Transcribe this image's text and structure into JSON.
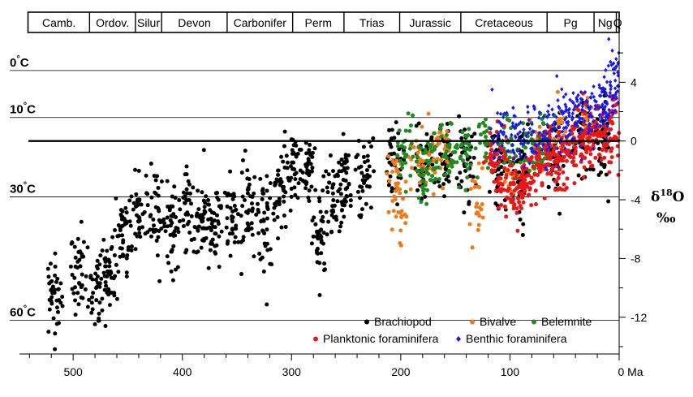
{
  "chart_data": {
    "type": "scatter",
    "title": "",
    "xlabel": "",
    "x_unit": "Ma",
    "ylabel": "δ18O ‰",
    "xlim": [
      541,
      0
    ],
    "ylim": [
      7.5,
      -14.5
    ],
    "x_ticks": [
      500,
      400,
      300,
      200,
      100,
      0
    ],
    "x_tick_labels": [
      "500",
      "400",
      "300",
      "200",
      "100",
      "0 Ma"
    ],
    "y_ticks": [
      4,
      0,
      -4,
      -8,
      -12
    ],
    "y_tick_labels": [
      "4",
      "0",
      "-4",
      "-8",
      "-12"
    ],
    "periods": [
      {
        "name": "Camb.",
        "start": 541,
        "end": 485
      },
      {
        "name": "Ordov.",
        "start": 485,
        "end": 443
      },
      {
        "name": "Silur",
        "start": 443,
        "end": 419
      },
      {
        "name": "Devon",
        "start": 419,
        "end": 359
      },
      {
        "name": "Carbonifer",
        "start": 359,
        "end": 299
      },
      {
        "name": "Perm",
        "start": 299,
        "end": 252
      },
      {
        "name": "Trias",
        "start": 252,
        "end": 201
      },
      {
        "name": "Jurassic",
        "start": 201,
        "end": 145
      },
      {
        "name": "Cretaceous",
        "start": 145,
        "end": 66
      },
      {
        "name": "Pg",
        "start": 66,
        "end": 23
      },
      {
        "name": "Ng",
        "start": 23,
        "end": 2.6
      },
      {
        "name": "Q",
        "start": 2.6,
        "end": 0
      }
    ],
    "temperature_lines": [
      {
        "label": "0",
        "unit": "°C",
        "y": 4.8
      },
      {
        "label": "10",
        "unit": "°C",
        "y": 1.6
      },
      {
        "label": "30",
        "unit": "°C",
        "y": -3.8
      },
      {
        "label": "60",
        "unit": "°C",
        "y": -12.2
      }
    ],
    "zero_line_y": 0,
    "series": [
      {
        "name": "Brachiopod",
        "color": "#000000",
        "marker": "circle",
        "clusters": [
          {
            "x": 518,
            "y": -10.5
          },
          {
            "x": 495,
            "y": -9.0
          },
          {
            "x": 478,
            "y": -10.5
          },
          {
            "x": 466,
            "y": -8.8
          },
          {
            "x": 455,
            "y": -6.0
          },
          {
            "x": 440,
            "y": -5.2
          },
          {
            "x": 425,
            "y": -4.8
          },
          {
            "x": 410,
            "y": -5.8
          },
          {
            "x": 395,
            "y": -5.0
          },
          {
            "x": 382,
            "y": -5.2
          },
          {
            "x": 370,
            "y": -6.5
          },
          {
            "x": 355,
            "y": -5.5
          },
          {
            "x": 340,
            "y": -4.0
          },
          {
            "x": 325,
            "y": -5.5
          },
          {
            "x": 310,
            "y": -3.5
          },
          {
            "x": 298,
            "y": -2.2
          },
          {
            "x": 285,
            "y": -2.0
          },
          {
            "x": 275,
            "y": -6.5
          },
          {
            "x": 262,
            "y": -3.5
          },
          {
            "x": 250,
            "y": -2.8
          },
          {
            "x": 232,
            "y": -2.5
          },
          {
            "x": 205,
            "y": -1.2
          },
          {
            "x": 180,
            "y": -1.8
          },
          {
            "x": 160,
            "y": -1.5
          },
          {
            "x": 140,
            "y": -1.2
          },
          {
            "x": 110,
            "y": -2.0
          },
          {
            "x": 90,
            "y": -2.0
          },
          {
            "x": 60,
            "y": -1.0
          },
          {
            "x": 35,
            "y": 0.5
          },
          {
            "x": 15,
            "y": 0.0
          }
        ]
      },
      {
        "name": "Bivalve",
        "color": "#f07a1a",
        "marker": "circle",
        "clusters": [
          {
            "x": 205,
            "y": -2.5
          },
          {
            "x": 200,
            "y": -4.5
          },
          {
            "x": 185,
            "y": -1.5
          },
          {
            "x": 170,
            "y": -1.0
          },
          {
            "x": 160,
            "y": -0.5
          },
          {
            "x": 130,
            "y": -4.5
          },
          {
            "x": 100,
            "y": -3.0
          },
          {
            "x": 75,
            "y": -0.5
          },
          {
            "x": 55,
            "y": 0.5
          },
          {
            "x": 30,
            "y": 1.5
          }
        ]
      },
      {
        "name": "Belemnite",
        "color": "#1f8a1f",
        "marker": "circle",
        "clusters": [
          {
            "x": 195,
            "y": -1.0
          },
          {
            "x": 180,
            "y": -2.0
          },
          {
            "x": 170,
            "y": -1.0
          },
          {
            "x": 155,
            "y": -0.5
          },
          {
            "x": 140,
            "y": -0.8
          },
          {
            "x": 120,
            "y": -0.2
          },
          {
            "x": 100,
            "y": -0.5
          },
          {
            "x": 80,
            "y": -1.0
          },
          {
            "x": 70,
            "y": 0.0
          }
        ]
      },
      {
        "name": "Planktonic foraminifera",
        "color": "#e81818",
        "marker": "circle",
        "clusters": [
          {
            "x": 115,
            "y": -1.0
          },
          {
            "x": 105,
            "y": -2.5
          },
          {
            "x": 95,
            "y": -3.5
          },
          {
            "x": 85,
            "y": -2.5
          },
          {
            "x": 75,
            "y": -1.5
          },
          {
            "x": 65,
            "y": -1.0
          },
          {
            "x": 55,
            "y": -1.5
          },
          {
            "x": 45,
            "y": -0.5
          },
          {
            "x": 35,
            "y": 0.5
          },
          {
            "x": 25,
            "y": 0.0
          },
          {
            "x": 15,
            "y": 0.5
          },
          {
            "x": 5,
            "y": 1.0
          }
        ]
      },
      {
        "name": "Benthic foraminifera",
        "color": "#1a1aee",
        "marker": "diamond",
        "clusters": [
          {
            "x": 110,
            "y": 0.5
          },
          {
            "x": 95,
            "y": 0.0
          },
          {
            "x": 80,
            "y": 0.5
          },
          {
            "x": 65,
            "y": 0.5
          },
          {
            "x": 55,
            "y": 1.0
          },
          {
            "x": 45,
            "y": 1.5
          },
          {
            "x": 35,
            "y": 2.0
          },
          {
            "x": 25,
            "y": 2.0
          },
          {
            "x": 15,
            "y": 2.5
          },
          {
            "x": 8,
            "y": 3.0
          },
          {
            "x": 2,
            "y": 4.0
          }
        ]
      }
    ],
    "legend": {
      "placement": "bottom-right"
    },
    "grid": false
  }
}
